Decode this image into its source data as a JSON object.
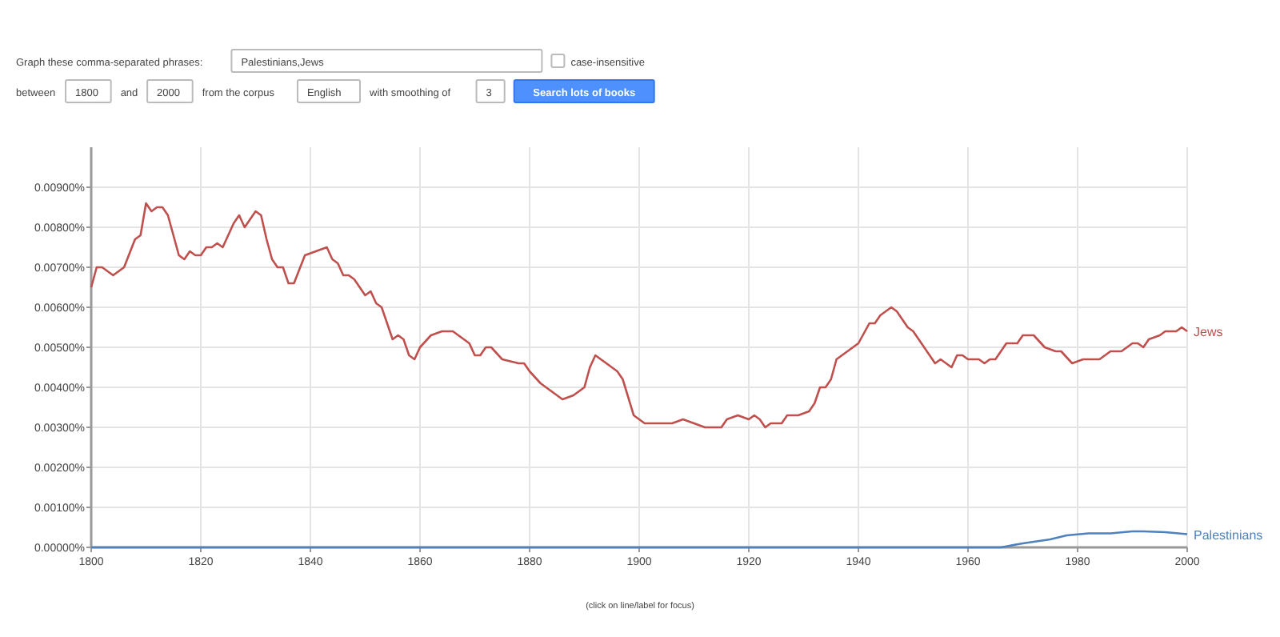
{
  "chart_data": {
    "type": "line",
    "x": [
      1800,
      1801,
      1802,
      1804,
      1806,
      1808,
      1809,
      1810,
      1811,
      1812,
      1813,
      1814,
      1816,
      1817,
      1818,
      1819,
      1820,
      1821,
      1822,
      1823,
      1824,
      1826,
      1827,
      1828,
      1830,
      1831,
      1832,
      1833,
      1834,
      1835,
      1836,
      1837,
      1839,
      1841,
      1843,
      1844,
      1845,
      1846,
      1847,
      1848,
      1850,
      1851,
      1852,
      1853,
      1855,
      1856,
      1857,
      1858,
      1859,
      1860,
      1862,
      1864,
      1866,
      1868,
      1869,
      1870,
      1871,
      1872,
      1873,
      1875,
      1878,
      1879,
      1880,
      1882,
      1884,
      1886,
      1888,
      1890,
      1891,
      1892,
      1893,
      1895,
      1896,
      1897,
      1899,
      1901,
      1903,
      1904,
      1906,
      1908,
      1910,
      1912,
      1913,
      1915,
      1916,
      1918,
      1920,
      1921,
      1922,
      1923,
      1924,
      1926,
      1927,
      1929,
      1931,
      1932,
      1933,
      1934,
      1935,
      1936,
      1938,
      1940,
      1942,
      1943,
      1944,
      1946,
      1947,
      1949,
      1950,
      1952,
      1954,
      1955,
      1957,
      1958,
      1959,
      1960,
      1962,
      1963,
      1964,
      1965,
      1967,
      1968,
      1969,
      1970,
      1972,
      1974,
      1976,
      1977,
      1979,
      1981,
      1983,
      1984,
      1986,
      1988,
      1990,
      1991,
      1992,
      1993,
      1995,
      1996,
      1998,
      1999,
      2000
    ],
    "series": [
      {
        "name": "Jews",
        "color": "#c0504d",
        "values": [
          0.0065,
          0.007,
          0.007,
          0.0068,
          0.007,
          0.0077,
          0.0078,
          0.0086,
          0.0084,
          0.0085,
          0.0085,
          0.0083,
          0.0073,
          0.0072,
          0.0074,
          0.0073,
          0.0073,
          0.0075,
          0.0075,
          0.0076,
          0.0075,
          0.0081,
          0.0083,
          0.008,
          0.0084,
          0.0083,
          0.0077,
          0.0072,
          0.007,
          0.007,
          0.0066,
          0.0066,
          0.0073,
          0.0074,
          0.0075,
          0.0072,
          0.0071,
          0.0068,
          0.0068,
          0.0067,
          0.0063,
          0.0064,
          0.0061,
          0.006,
          0.0052,
          0.0053,
          0.0052,
          0.0048,
          0.0047,
          0.005,
          0.0053,
          0.0054,
          0.0054,
          0.0052,
          0.0051,
          0.0048,
          0.0048,
          0.005,
          0.005,
          0.0047,
          0.0046,
          0.0046,
          0.0044,
          0.0041,
          0.0039,
          0.0037,
          0.0038,
          0.004,
          0.0045,
          0.0048,
          0.0047,
          0.0045,
          0.0044,
          0.0042,
          0.0033,
          0.0031,
          0.0031,
          0.0031,
          0.0031,
          0.0032,
          0.0031,
          0.003,
          0.003,
          0.003,
          0.0032,
          0.0033,
          0.0032,
          0.0033,
          0.0032,
          0.003,
          0.0031,
          0.0031,
          0.0033,
          0.0033,
          0.0034,
          0.0036,
          0.004,
          0.004,
          0.0042,
          0.0047,
          0.0049,
          0.0051,
          0.0056,
          0.0056,
          0.0058,
          0.006,
          0.0059,
          0.0055,
          0.0054,
          0.005,
          0.0046,
          0.0047,
          0.0045,
          0.0048,
          0.0048,
          0.0047,
          0.0047,
          0.0046,
          0.0047,
          0.0047,
          0.0051,
          0.0051,
          0.0051,
          0.0053,
          0.0053,
          0.005,
          0.0049,
          0.0049,
          0.0046,
          0.0047,
          0.0047,
          0.0047,
          0.0049,
          0.0049,
          0.0051,
          0.0051,
          0.005,
          0.0052,
          0.0053,
          0.0054,
          0.0054,
          0.0055,
          0.0054
        ]
      },
      {
        "name": "Palestinians",
        "color": "#4f81bd",
        "x": [
          1800,
          1900,
          1966,
          1970,
          1975,
          1978,
          1982,
          1986,
          1990,
          1992,
          1996,
          2000
        ],
        "values": [
          0,
          0,
          0,
          0.0001,
          0.0002,
          0.0003,
          0.00035,
          0.00035,
          0.0004,
          0.0004,
          0.00038,
          0.00033
        ]
      }
    ],
    "xlim": [
      1800,
      2000
    ],
    "xticks": [
      1800,
      1820,
      1840,
      1860,
      1880,
      1900,
      1920,
      1940,
      1960,
      1980,
      2000
    ],
    "ylim": [
      0,
      0.01
    ],
    "yticks": [
      {
        "value": 0,
        "label": "0.00000%"
      },
      {
        "value": 0.001,
        "label": "0.00100%"
      },
      {
        "value": 0.002,
        "label": "0.00200%"
      },
      {
        "value": 0.003,
        "label": "0.00300%"
      },
      {
        "value": 0.004,
        "label": "0.00400%"
      },
      {
        "value": 0.005,
        "label": "0.00500%"
      },
      {
        "value": 0.006,
        "label": "0.00600%"
      },
      {
        "value": 0.007,
        "label": "0.00700%"
      },
      {
        "value": 0.008,
        "label": "0.00800%"
      },
      {
        "value": 0.009,
        "label": "0.00900%"
      }
    ],
    "grid": true,
    "marker": "none",
    "line_style": "solid",
    "annotations": [
      "Graph these comma-separated phrases:",
      "Palestinians,Jews",
      "case-insensitive",
      "between",
      "1800",
      "and",
      "2000",
      "from the corpus",
      "English",
      "with smoothing of",
      "3",
      "Search lots of books",
      "(click on line/label for focus)"
    ]
  }
}
